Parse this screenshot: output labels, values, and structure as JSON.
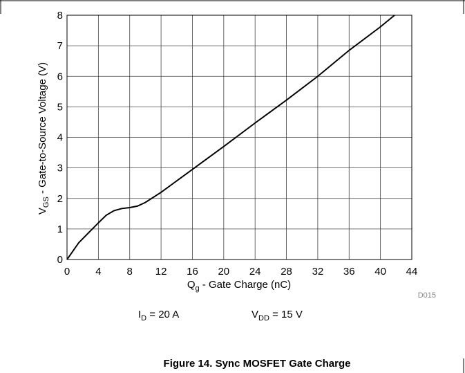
{
  "chart_data": {
    "type": "line",
    "y_label": {
      "main": "V",
      "sub": "GS",
      "rest": " - Gate-to-Source Voltage (V)"
    },
    "x_label": {
      "main": "Q",
      "sub": "g",
      "rest": " - Gate Charge (nC)"
    },
    "annotations": [
      {
        "main": "I",
        "sub": "D",
        "rest": " = 20 A"
      },
      {
        "main": "V",
        "sub": "DD",
        "rest": " = 15 V"
      }
    ],
    "code": "D015",
    "caption": "Figure 14. Sync MOSFET Gate Charge",
    "x": [
      0,
      1.5,
      4,
      5,
      6,
      7,
      8,
      9,
      10,
      12,
      16,
      20,
      24,
      28,
      32,
      36,
      40,
      41.8
    ],
    "series": [
      {
        "color": "#000000",
        "values": [
          0,
          0.55,
          1.2,
          1.45,
          1.6,
          1.67,
          1.7,
          1.75,
          1.87,
          2.2,
          2.95,
          3.7,
          4.47,
          5.22,
          6.0,
          6.85,
          7.62,
          8
        ]
      }
    ],
    "xlim": [
      0,
      44
    ],
    "xticks": [
      0,
      4,
      8,
      12,
      16,
      20,
      24,
      28,
      32,
      36,
      40,
      44
    ],
    "ylim": [
      0,
      8
    ],
    "yticks": [
      0,
      1,
      2,
      3,
      4,
      5,
      6,
      7,
      8
    ],
    "grid": true
  }
}
